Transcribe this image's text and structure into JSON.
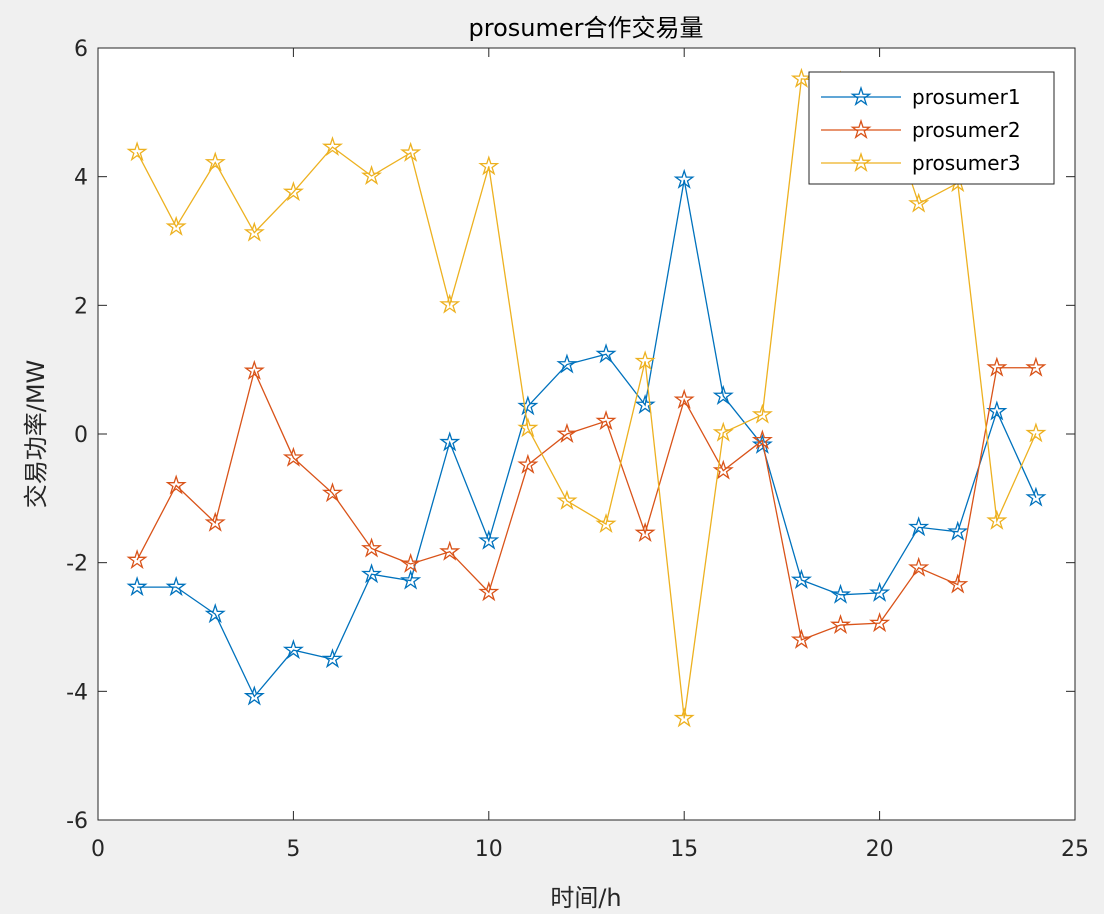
{
  "chart_data": {
    "type": "line",
    "title": "prosumer合作交易量",
    "xlabel": "时间/h",
    "ylabel": "交易功率/MW",
    "xlim": [
      0,
      25
    ],
    "ylim": [
      -6,
      6
    ],
    "xticks": [
      0,
      5,
      10,
      15,
      20,
      25
    ],
    "yticks": [
      -6,
      -4,
      -2,
      0,
      2,
      4,
      6
    ],
    "x": [
      1,
      2,
      3,
      4,
      5,
      6,
      7,
      8,
      9,
      10,
      11,
      12,
      13,
      14,
      15,
      16,
      17,
      18,
      19,
      20,
      21,
      22,
      23,
      24
    ],
    "marker": "pentagram",
    "grid": false,
    "legend_position": "top-right",
    "series": [
      {
        "name": "prosumer1",
        "color": "#0072BD",
        "values": [
          -2.38,
          -2.38,
          -2.8,
          -4.08,
          -3.36,
          -3.5,
          -2.18,
          -2.28,
          -0.13,
          -1.66,
          0.43,
          1.08,
          1.24,
          0.45,
          3.95,
          0.59,
          -0.17,
          -2.27,
          -2.5,
          -2.47,
          -1.45,
          -1.52,
          0.35,
          -0.99
        ]
      },
      {
        "name": "prosumer2",
        "color": "#D95319",
        "values": [
          -1.96,
          -0.8,
          -1.38,
          0.98,
          -0.37,
          -0.92,
          -1.78,
          -2.02,
          -1.83,
          -2.46,
          -0.48,
          0.0,
          0.2,
          -1.54,
          0.53,
          -0.57,
          -0.1,
          -3.2,
          -2.97,
          -2.94,
          -2.08,
          -2.34,
          1.03,
          1.03
        ]
      },
      {
        "name": "prosumer3",
        "color": "#EDB120",
        "values": [
          4.38,
          3.22,
          4.22,
          3.13,
          3.76,
          4.46,
          4.01,
          4.37,
          2.01,
          4.16,
          0.09,
          -1.04,
          -1.4,
          1.13,
          -4.42,
          0.02,
          0.3,
          5.52,
          5.48,
          5.4,
          3.58,
          3.9,
          -1.35,
          0.01
        ]
      }
    ]
  }
}
